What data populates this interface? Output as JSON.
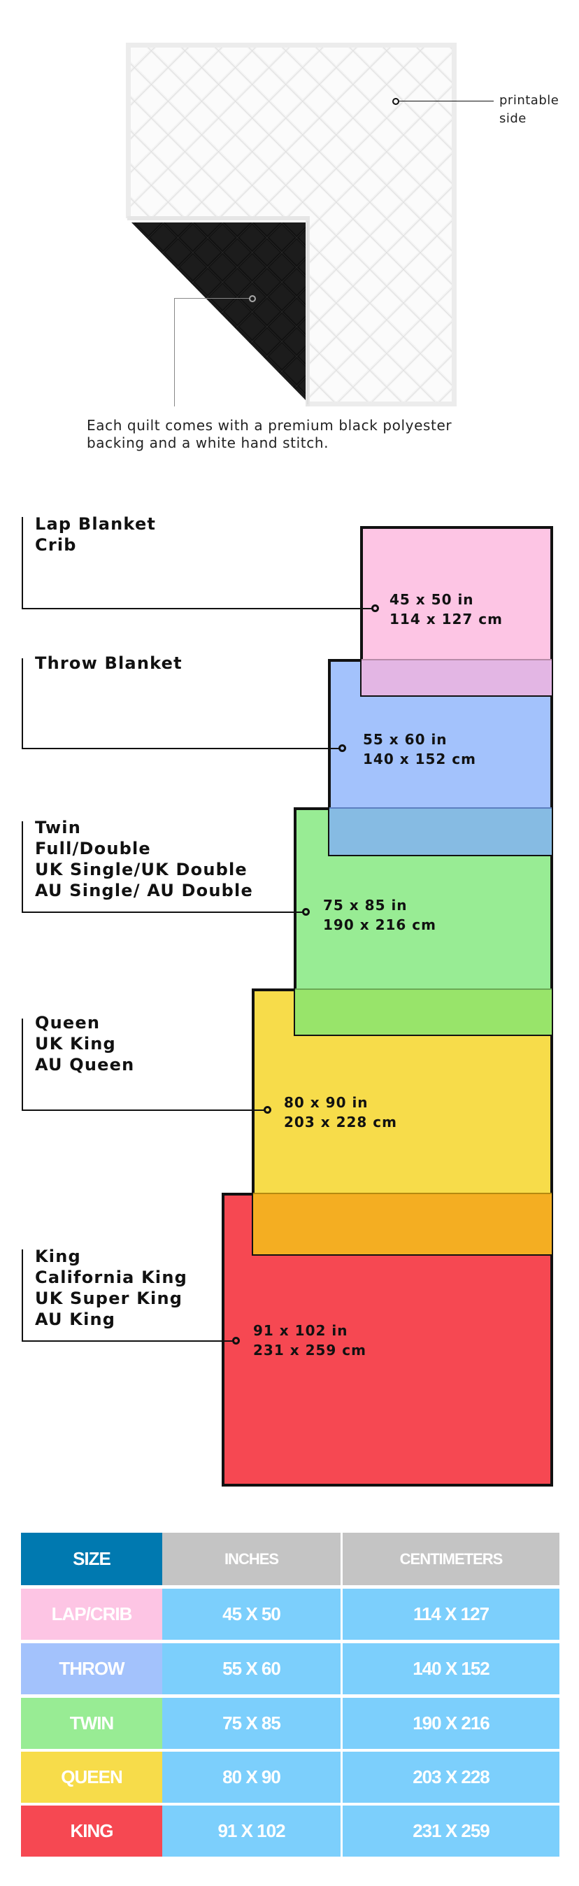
{
  "quilt": {
    "printable_label": [
      "printable",
      "side"
    ],
    "caption": [
      "Each quilt comes with a premium black polyester",
      "backing and a white hand stitch."
    ]
  },
  "sizes": [
    {
      "labels": [
        "Lap Blanket",
        "Crib"
      ],
      "inches": "45 x 50 in",
      "cm": "114 x 127 cm",
      "color": "#fdc5e4"
    },
    {
      "labels": [
        "Throw Blanket"
      ],
      "inches": "55 x 60 in",
      "cm": "140 x 152 cm",
      "color": "#a3c2fc"
    },
    {
      "labels": [
        "Twin",
        "Full/Double",
        "UK Single/UK Double",
        "AU Single/ AU Double"
      ],
      "inches": "75 x 85 in",
      "cm": "190 x 216 cm",
      "color": "#98ec94"
    },
    {
      "labels": [
        "Queen",
        "UK King",
        "AU Queen"
      ],
      "inches": "80 x 90 in",
      "cm": "203 x 228 cm",
      "color": "#f7dc4a"
    },
    {
      "labels": [
        "King",
        "California King",
        "UK Super King",
        "AU King"
      ],
      "inches": "91 x 102 in",
      "cm": "231 x 259 cm",
      "color": "#f64852"
    }
  ],
  "table": {
    "headers": [
      "SIZE",
      "INCHES",
      "CENTIMETERS"
    ],
    "header_colors": {
      "size": "#0079b0",
      "other": "#c4c4c4"
    },
    "cell_color": "#7ccffc",
    "rows": [
      {
        "size": "LAP/CRIB",
        "inches": "45 X 50",
        "cm": "114 X 127",
        "color": "#fdc5e4"
      },
      {
        "size": "THROW",
        "inches": "55 X 60",
        "cm": "140 X 152",
        "color": "#a3c2fc"
      },
      {
        "size": "TWIN",
        "inches": "75 X 85",
        "cm": "190 X 216",
        "color": "#98ec94"
      },
      {
        "size": "QUEEN",
        "inches": "80 X 90",
        "cm": "203 X 228",
        "color": "#f7dc4a"
      },
      {
        "size": "KING",
        "inches": "91 X 102",
        "cm": "231 X 259",
        "color": "#f64852"
      }
    ]
  }
}
